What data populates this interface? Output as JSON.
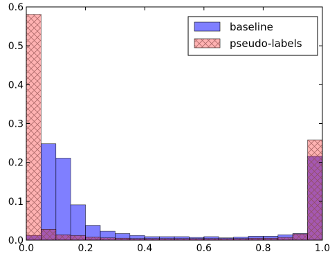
{
  "chart_data": {
    "type": "bar",
    "subtype": "overlaid-histogram",
    "title": "",
    "xlabel": "",
    "ylabel": "",
    "xlim": [
      0.0,
      1.0
    ],
    "ylim": [
      0.0,
      0.6
    ],
    "grid": false,
    "legend_position": "top-right",
    "bins": 20,
    "bin_edges": [
      0.0,
      0.05,
      0.1,
      0.15,
      0.2,
      0.25,
      0.3,
      0.35,
      0.4,
      0.45,
      0.5,
      0.55,
      0.6,
      0.65,
      0.7,
      0.75,
      0.8,
      0.85,
      0.9,
      0.95,
      1.0
    ],
    "x_ticks": [
      "0.0",
      "0.2",
      "0.4",
      "0.6",
      "0.8",
      "1.0"
    ],
    "y_ticks": [
      "0.0",
      "0.1",
      "0.2",
      "0.3",
      "0.4",
      "0.5",
      "0.6"
    ],
    "series": [
      {
        "name": "baseline",
        "color": "#0000ff",
        "alpha": 0.5,
        "hatch": "none",
        "values": [
          0.012,
          0.248,
          0.211,
          0.091,
          0.038,
          0.023,
          0.017,
          0.012,
          0.009,
          0.009,
          0.009,
          0.007,
          0.009,
          0.006,
          0.008,
          0.01,
          0.01,
          0.014,
          0.017,
          0.216
        ]
      },
      {
        "name": "pseudo-labels",
        "color": "#ff0000",
        "alpha": 0.3,
        "hatch": "crosshatch",
        "values": [
          0.581,
          0.028,
          0.014,
          0.012,
          0.008,
          0.006,
          0.005,
          0.004,
          0.004,
          0.004,
          0.004,
          0.004,
          0.004,
          0.004,
          0.004,
          0.005,
          0.005,
          0.007,
          0.016,
          0.258
        ]
      }
    ]
  }
}
